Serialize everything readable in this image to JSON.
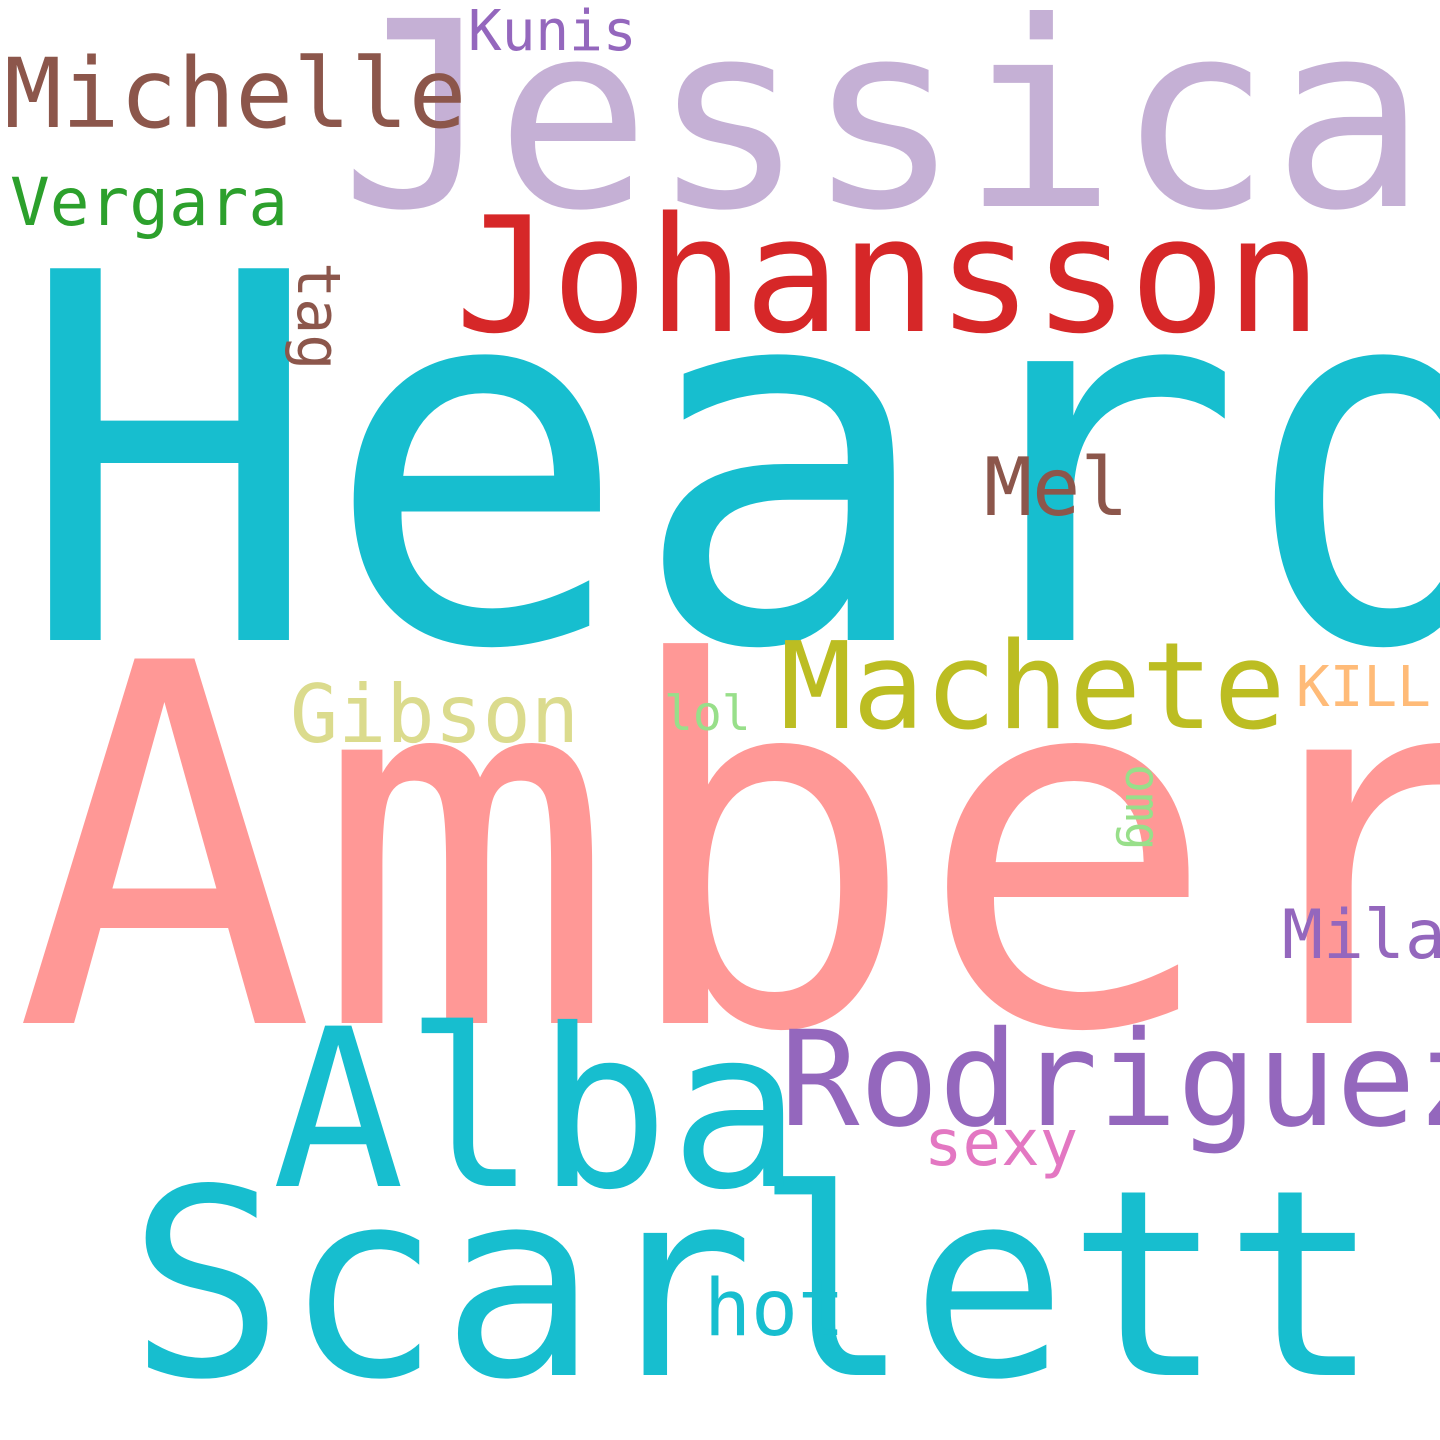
{
  "background": "#ffffff",
  "words": [
    {
      "id": "word-heard",
      "text": "Heard",
      "color": "#17becf"
    },
    {
      "id": "word-amber",
      "text": "Amber",
      "color": "#ff9896"
    },
    {
      "id": "word-jessica",
      "text": "Jessica",
      "color": "#c5b0d5"
    },
    {
      "id": "word-scarlett",
      "text": "Scarlett",
      "color": "#17becf"
    },
    {
      "id": "word-alba",
      "text": "Alba",
      "color": "#17becf"
    },
    {
      "id": "word-johansson",
      "text": "Johansson",
      "color": "#d62728"
    },
    {
      "id": "word-rodriguez",
      "text": "Rodriguez",
      "color": "#9467bd"
    },
    {
      "id": "word-machete",
      "text": "Machete",
      "color": "#bcbd22"
    },
    {
      "id": "word-michelle",
      "text": "Michelle",
      "color": "#8c564b"
    },
    {
      "id": "word-gibson",
      "text": "Gibson",
      "color": "#dbdb8d"
    },
    {
      "id": "word-mel",
      "text": "Mel",
      "color": "#8c564b"
    },
    {
      "id": "word-vergara",
      "text": "Vergara",
      "color": "#2ca02c"
    },
    {
      "id": "word-hot",
      "text": "hot",
      "color": "#17becf"
    },
    {
      "id": "word-sexy",
      "text": "sexy",
      "color": "#e377c2"
    },
    {
      "id": "word-mila",
      "text": "Mila",
      "color": "#9467bd"
    },
    {
      "id": "word-kunis",
      "text": "Kunis",
      "color": "#9467bd"
    },
    {
      "id": "word-kill",
      "text": "KILL",
      "color": "#ffbb78"
    },
    {
      "id": "word-lol",
      "text": "lol",
      "color": "#8c564b"
    },
    {
      "id": "word-tag",
      "text": "tag",
      "color": "#98df8a"
    },
    {
      "id": "word-omg",
      "text": "omg",
      "color": "#98df8a"
    }
  ]
}
